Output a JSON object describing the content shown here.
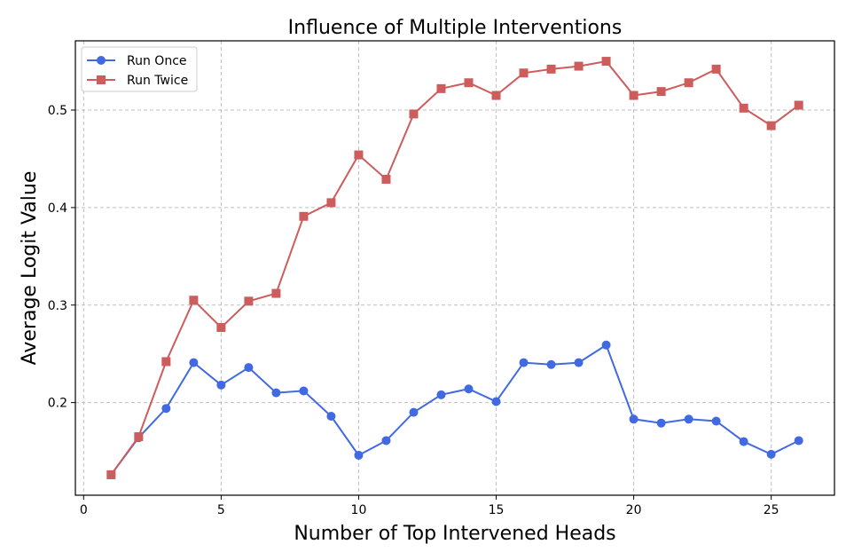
{
  "chart_data": {
    "type": "line",
    "title": "Influence of Multiple Interventions",
    "xlabel": "Number of Top Intervened Heads",
    "ylabel": "Average Logit Value",
    "xlim": [
      -0.3,
      27.3
    ],
    "ylim": [
      0.105,
      0.571
    ],
    "xticks": [
      0,
      5,
      10,
      15,
      20,
      25
    ],
    "yticks": [
      0.2,
      0.3,
      0.4,
      0.5
    ],
    "ytick_labels": [
      "0.2",
      "0.3",
      "0.4",
      "0.5"
    ],
    "grid": true,
    "legend_position": "top-left",
    "x": [
      1,
      2,
      3,
      4,
      5,
      6,
      7,
      8,
      9,
      10,
      11,
      12,
      13,
      14,
      15,
      16,
      17,
      18,
      19,
      20,
      21,
      22,
      23,
      24,
      25,
      26
    ],
    "series": [
      {
        "name": "Run Once",
        "color": "#4169e1",
        "marker": "circle",
        "values": [
          0.126,
          0.164,
          0.194,
          0.241,
          0.218,
          0.236,
          0.21,
          0.212,
          0.186,
          0.146,
          0.161,
          0.19,
          0.208,
          0.214,
          0.201,
          0.241,
          0.239,
          0.241,
          0.259,
          0.183,
          0.179,
          0.183,
          0.181,
          0.16,
          0.147,
          0.161
        ]
      },
      {
        "name": "Run Twice",
        "color": "#cd5c5c",
        "marker": "square",
        "values": [
          0.126,
          0.165,
          0.242,
          0.305,
          0.277,
          0.304,
          0.312,
          0.391,
          0.405,
          0.454,
          0.429,
          0.496,
          0.522,
          0.528,
          0.515,
          0.538,
          0.542,
          0.545,
          0.55,
          0.515,
          0.519,
          0.528,
          0.542,
          0.502,
          0.484,
          0.505
        ]
      }
    ]
  }
}
